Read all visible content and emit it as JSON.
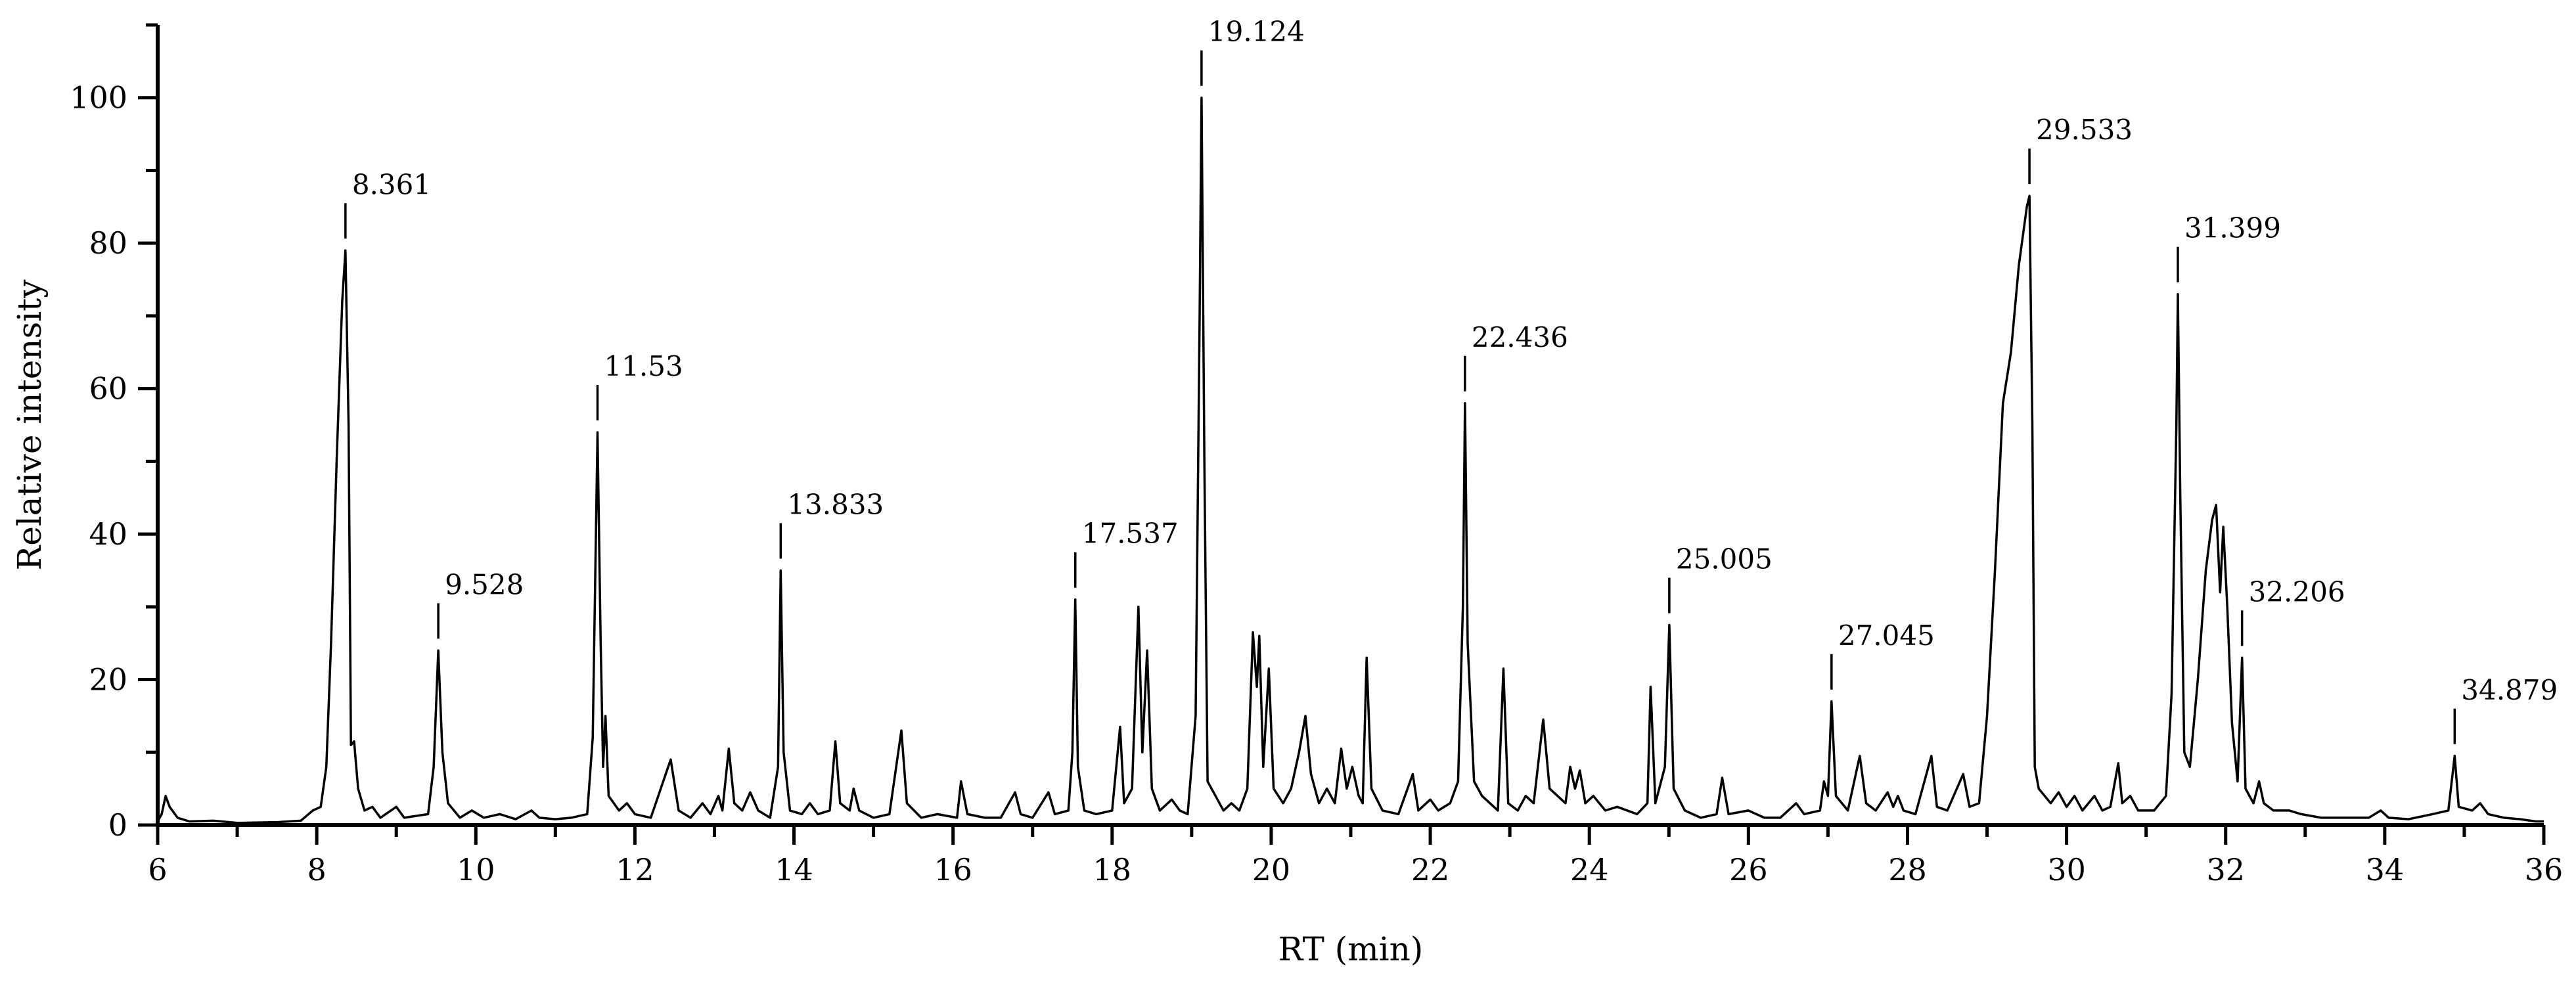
{
  "chart_data": {
    "type": "line",
    "title": "",
    "xlabel": "RT (min)",
    "ylabel": "Relative intensity",
    "xlim": [
      6,
      36
    ],
    "ylim": [
      0,
      110
    ],
    "x_ticks": [
      6,
      8,
      10,
      12,
      14,
      16,
      18,
      20,
      22,
      24,
      26,
      28,
      30,
      32,
      34,
      36
    ],
    "y_ticks": [
      0,
      20,
      40,
      60,
      80,
      100
    ],
    "grid": false,
    "legend": "none",
    "line_color": "#000000",
    "peaks": [
      {
        "label": "8.361",
        "rt": 8.361,
        "intensity": 79
      },
      {
        "label": "9.528",
        "rt": 9.528,
        "intensity": 24
      },
      {
        "label": "11.53",
        "rt": 11.53,
        "intensity": 54
      },
      {
        "label": "13.833",
        "rt": 13.833,
        "intensity": 35
      },
      {
        "label": "17.537",
        "rt": 17.537,
        "intensity": 31
      },
      {
        "label": "19.124",
        "rt": 19.124,
        "intensity": 100
      },
      {
        "label": "22.436",
        "rt": 22.436,
        "intensity": 58
      },
      {
        "label": "25.005",
        "rt": 25.005,
        "intensity": 27.5
      },
      {
        "label": "27.045",
        "rt": 27.045,
        "intensity": 17
      },
      {
        "label": "29.533",
        "rt": 29.533,
        "intensity": 86.5
      },
      {
        "label": "31.399",
        "rt": 31.399,
        "intensity": 73
      },
      {
        "label": "32.206",
        "rt": 32.206,
        "intensity": 23
      },
      {
        "label": "34.879",
        "rt": 34.879,
        "intensity": 9.5
      }
    ],
    "trace": [
      [
        6.0,
        0.5
      ],
      [
        6.05,
        1.5
      ],
      [
        6.1,
        4
      ],
      [
        6.15,
        2.5
      ],
      [
        6.25,
        1
      ],
      [
        6.4,
        0.5
      ],
      [
        6.7,
        0.6
      ],
      [
        7.0,
        0.3
      ],
      [
        7.5,
        0.4
      ],
      [
        7.8,
        0.6
      ],
      [
        7.95,
        2
      ],
      [
        8.05,
        2.5
      ],
      [
        8.12,
        8
      ],
      [
        8.18,
        25
      ],
      [
        8.25,
        50
      ],
      [
        8.32,
        72
      ],
      [
        8.361,
        79
      ],
      [
        8.4,
        55
      ],
      [
        8.43,
        11
      ],
      [
        8.47,
        11.5
      ],
      [
        8.52,
        5
      ],
      [
        8.6,
        2
      ],
      [
        8.7,
        2.5
      ],
      [
        8.8,
        1
      ],
      [
        9.0,
        2.5
      ],
      [
        9.1,
        1
      ],
      [
        9.4,
        1.5
      ],
      [
        9.47,
        8
      ],
      [
        9.528,
        24
      ],
      [
        9.58,
        10
      ],
      [
        9.65,
        3
      ],
      [
        9.8,
        1
      ],
      [
        9.95,
        2
      ],
      [
        10.1,
        1
      ],
      [
        10.3,
        1.5
      ],
      [
        10.5,
        0.8
      ],
      [
        10.7,
        2
      ],
      [
        10.8,
        1
      ],
      [
        11.0,
        0.8
      ],
      [
        11.2,
        1
      ],
      [
        11.4,
        1.5
      ],
      [
        11.47,
        12
      ],
      [
        11.53,
        54
      ],
      [
        11.57,
        25
      ],
      [
        11.6,
        8
      ],
      [
        11.63,
        15
      ],
      [
        11.67,
        4
      ],
      [
        11.8,
        2
      ],
      [
        11.9,
        3
      ],
      [
        12.0,
        1.5
      ],
      [
        12.2,
        1
      ],
      [
        12.45,
        9
      ],
      [
        12.55,
        2
      ],
      [
        12.7,
        1
      ],
      [
        12.85,
        3
      ],
      [
        12.95,
        1.5
      ],
      [
        13.05,
        4
      ],
      [
        13.1,
        2
      ],
      [
        13.18,
        10.5
      ],
      [
        13.25,
        3
      ],
      [
        13.35,
        2
      ],
      [
        13.45,
        4.5
      ],
      [
        13.55,
        2
      ],
      [
        13.7,
        1
      ],
      [
        13.8,
        8
      ],
      [
        13.833,
        35
      ],
      [
        13.87,
        10
      ],
      [
        13.95,
        2
      ],
      [
        14.1,
        1.5
      ],
      [
        14.2,
        3
      ],
      [
        14.3,
        1.5
      ],
      [
        14.45,
        2
      ],
      [
        14.52,
        11.5
      ],
      [
        14.58,
        3
      ],
      [
        14.7,
        2
      ],
      [
        14.75,
        5
      ],
      [
        14.82,
        2
      ],
      [
        15.0,
        1
      ],
      [
        15.2,
        1.5
      ],
      [
        15.35,
        13
      ],
      [
        15.42,
        3
      ],
      [
        15.6,
        1
      ],
      [
        15.8,
        1.5
      ],
      [
        16.05,
        1
      ],
      [
        16.1,
        6
      ],
      [
        16.18,
        1.5
      ],
      [
        16.4,
        1
      ],
      [
        16.6,
        1
      ],
      [
        16.78,
        4.5
      ],
      [
        16.85,
        1.5
      ],
      [
        17.0,
        1
      ],
      [
        17.2,
        4.5
      ],
      [
        17.28,
        1.5
      ],
      [
        17.45,
        2
      ],
      [
        17.5,
        10
      ],
      [
        17.537,
        31
      ],
      [
        17.57,
        8
      ],
      [
        17.65,
        2
      ],
      [
        17.8,
        1.5
      ],
      [
        18.0,
        2
      ],
      [
        18.1,
        13.5
      ],
      [
        18.15,
        3
      ],
      [
        18.25,
        5
      ],
      [
        18.33,
        30
      ],
      [
        18.38,
        10
      ],
      [
        18.44,
        24
      ],
      [
        18.5,
        5
      ],
      [
        18.6,
        2
      ],
      [
        18.75,
        3.5
      ],
      [
        18.85,
        2
      ],
      [
        18.95,
        1.5
      ],
      [
        19.05,
        15
      ],
      [
        19.1,
        70
      ],
      [
        19.124,
        100
      ],
      [
        19.16,
        50
      ],
      [
        19.2,
        6
      ],
      [
        19.3,
        4
      ],
      [
        19.4,
        2
      ],
      [
        19.5,
        3
      ],
      [
        19.6,
        2
      ],
      [
        19.7,
        5
      ],
      [
        19.77,
        26.5
      ],
      [
        19.82,
        19
      ],
      [
        19.85,
        26
      ],
      [
        19.9,
        8
      ],
      [
        19.97,
        21.5
      ],
      [
        20.03,
        5
      ],
      [
        20.15,
        3
      ],
      [
        20.25,
        5
      ],
      [
        20.35,
        10
      ],
      [
        20.43,
        15
      ],
      [
        20.5,
        7
      ],
      [
        20.6,
        3
      ],
      [
        20.7,
        5
      ],
      [
        20.8,
        3
      ],
      [
        20.88,
        10.5
      ],
      [
        20.95,
        5
      ],
      [
        21.02,
        8
      ],
      [
        21.1,
        4
      ],
      [
        21.15,
        3
      ],
      [
        21.2,
        23
      ],
      [
        21.26,
        5
      ],
      [
        21.4,
        2
      ],
      [
        21.6,
        1.5
      ],
      [
        21.78,
        7
      ],
      [
        21.85,
        2
      ],
      [
        22.0,
        3.5
      ],
      [
        22.1,
        2
      ],
      [
        22.25,
        3
      ],
      [
        22.35,
        6
      ],
      [
        22.41,
        30
      ],
      [
        22.436,
        58
      ],
      [
        22.47,
        25
      ],
      [
        22.55,
        6
      ],
      [
        22.65,
        4
      ],
      [
        22.75,
        3
      ],
      [
        22.85,
        2
      ],
      [
        22.92,
        21.5
      ],
      [
        22.98,
        3
      ],
      [
        23.1,
        2
      ],
      [
        23.2,
        4
      ],
      [
        23.3,
        3
      ],
      [
        23.42,
        14.5
      ],
      [
        23.5,
        5
      ],
      [
        23.6,
        4
      ],
      [
        23.7,
        3
      ],
      [
        23.76,
        8
      ],
      [
        23.82,
        5
      ],
      [
        23.88,
        7.5
      ],
      [
        23.95,
        3
      ],
      [
        24.05,
        4
      ],
      [
        24.2,
        2
      ],
      [
        24.35,
        2.5
      ],
      [
        24.6,
        1.5
      ],
      [
        24.73,
        3
      ],
      [
        24.77,
        19
      ],
      [
        24.83,
        3
      ],
      [
        24.95,
        8
      ],
      [
        25.005,
        27.5
      ],
      [
        25.06,
        5
      ],
      [
        25.2,
        2
      ],
      [
        25.4,
        1
      ],
      [
        25.6,
        1.5
      ],
      [
        25.67,
        6.5
      ],
      [
        25.75,
        1.5
      ],
      [
        26.0,
        2
      ],
      [
        26.2,
        1
      ],
      [
        26.4,
        1
      ],
      [
        26.6,
        3
      ],
      [
        26.7,
        1.5
      ],
      [
        26.9,
        2
      ],
      [
        26.95,
        6
      ],
      [
        27.0,
        4
      ],
      [
        27.045,
        17
      ],
      [
        27.1,
        4
      ],
      [
        27.25,
        2
      ],
      [
        27.4,
        9.5
      ],
      [
        27.48,
        3
      ],
      [
        27.6,
        2
      ],
      [
        27.75,
        4.5
      ],
      [
        27.82,
        2.5
      ],
      [
        27.88,
        4
      ],
      [
        27.95,
        2
      ],
      [
        28.1,
        1.5
      ],
      [
        28.3,
        9.5
      ],
      [
        28.37,
        2.5
      ],
      [
        28.5,
        2
      ],
      [
        28.7,
        7
      ],
      [
        28.78,
        2.5
      ],
      [
        28.9,
        3
      ],
      [
        29.0,
        15
      ],
      [
        29.1,
        35
      ],
      [
        29.2,
        58
      ],
      [
        29.3,
        65
      ],
      [
        29.4,
        77
      ],
      [
        29.5,
        85
      ],
      [
        29.533,
        86.5
      ],
      [
        29.57,
        55
      ],
      [
        29.6,
        8
      ],
      [
        29.65,
        5
      ],
      [
        29.8,
        3
      ],
      [
        29.9,
        4.5
      ],
      [
        30.0,
        2.5
      ],
      [
        30.1,
        4
      ],
      [
        30.2,
        2
      ],
      [
        30.35,
        4
      ],
      [
        30.45,
        2
      ],
      [
        30.55,
        2.5
      ],
      [
        30.65,
        8.5
      ],
      [
        30.7,
        3
      ],
      [
        30.8,
        4
      ],
      [
        30.9,
        2
      ],
      [
        31.1,
        2
      ],
      [
        31.25,
        4
      ],
      [
        31.32,
        18
      ],
      [
        31.38,
        55
      ],
      [
        31.399,
        73
      ],
      [
        31.43,
        45
      ],
      [
        31.48,
        10
      ],
      [
        31.55,
        8
      ],
      [
        31.65,
        20
      ],
      [
        31.75,
        35
      ],
      [
        31.83,
        42
      ],
      [
        31.88,
        44
      ],
      [
        31.93,
        32
      ],
      [
        31.97,
        41
      ],
      [
        32.02,
        30
      ],
      [
        32.08,
        14
      ],
      [
        32.15,
        6
      ],
      [
        32.206,
        23
      ],
      [
        32.25,
        5
      ],
      [
        32.35,
        3
      ],
      [
        32.42,
        6
      ],
      [
        32.48,
        3
      ],
      [
        32.6,
        2
      ],
      [
        32.8,
        2
      ],
      [
        32.95,
        1.5
      ],
      [
        33.2,
        1
      ],
      [
        33.5,
        1
      ],
      [
        33.8,
        1
      ],
      [
        33.95,
        2
      ],
      [
        34.05,
        1
      ],
      [
        34.3,
        0.8
      ],
      [
        34.6,
        1.5
      ],
      [
        34.8,
        2
      ],
      [
        34.879,
        9.5
      ],
      [
        34.93,
        2.5
      ],
      [
        35.1,
        2
      ],
      [
        35.2,
        3
      ],
      [
        35.3,
        1.5
      ],
      [
        35.5,
        1
      ],
      [
        35.7,
        0.8
      ],
      [
        35.9,
        0.5
      ],
      [
        36.0,
        0.5
      ]
    ]
  }
}
